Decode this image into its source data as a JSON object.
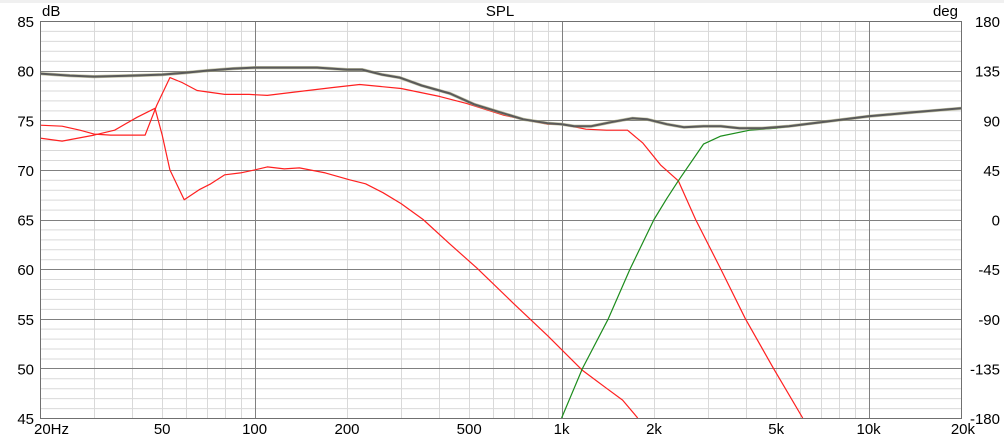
{
  "chart_data": {
    "type": "line",
    "title": "SPL",
    "ylabel": "dB",
    "y2label": "deg",
    "xscale": "log",
    "xlim": [
      20,
      20000
    ],
    "ylim": [
      45,
      85
    ],
    "y2lim": [
      -180,
      180
    ],
    "grid": true,
    "x_ticks": [
      {
        "value": 20,
        "label": "20Hz"
      },
      {
        "value": 50,
        "label": "50"
      },
      {
        "value": 100,
        "label": "100"
      },
      {
        "value": 200,
        "label": "200"
      },
      {
        "value": 500,
        "label": "500"
      },
      {
        "value": 1000,
        "label": "1k"
      },
      {
        "value": 2000,
        "label": "2k"
      },
      {
        "value": 5000,
        "label": "5k"
      },
      {
        "value": 10000,
        "label": "10k"
      },
      {
        "value": 20000,
        "label": "20k"
      }
    ],
    "y_ticks": [
      "85",
      "80",
      "75",
      "70",
      "65",
      "60",
      "55",
      "50",
      "45"
    ],
    "y2_ticks": [
      "180",
      "135",
      "90",
      "45",
      "0",
      "-45",
      "-90",
      "-135",
      "-180"
    ],
    "colors": {
      "sum": "#5a5a5a",
      "woofer": "#ff2020",
      "tweeter": "#1c8c1c",
      "grid_major": "#808080",
      "grid_minor": "#d9d9d9"
    },
    "series": [
      {
        "color": "#5a5a5a",
        "points": [
          [
            20,
            79.7
          ],
          [
            25,
            79.5
          ],
          [
            30,
            79.4
          ],
          [
            40,
            79.5
          ],
          [
            50,
            79.6
          ],
          [
            60,
            79.8
          ],
          [
            70,
            80.0
          ],
          [
            85,
            80.2
          ],
          [
            100,
            80.3
          ],
          [
            130,
            80.3
          ],
          [
            160,
            80.3
          ],
          [
            200,
            80.1
          ],
          [
            224,
            80.1
          ],
          [
            260,
            79.6
          ],
          [
            297,
            79.3
          ],
          [
            350,
            78.5
          ],
          [
            433,
            77.7
          ],
          [
            520,
            76.6
          ],
          [
            630,
            75.8
          ],
          [
            750,
            75.1
          ],
          [
            900,
            74.7
          ],
          [
            1000,
            74.6
          ],
          [
            1100,
            74.4
          ],
          [
            1250,
            74.4
          ],
          [
            1450,
            74.8
          ],
          [
            1700,
            75.2
          ],
          [
            1900,
            75.1
          ],
          [
            2200,
            74.6
          ],
          [
            2500,
            74.3
          ],
          [
            2900,
            74.4
          ],
          [
            3300,
            74.4
          ],
          [
            3800,
            74.2
          ],
          [
            4500,
            74.2
          ],
          [
            5500,
            74.4
          ],
          [
            7000,
            74.8
          ],
          [
            10000,
            75.4
          ],
          [
            14000,
            75.8
          ],
          [
            20000,
            76.2
          ]
        ]
      },
      {
        "color": "#ff2020",
        "points": [
          [
            20,
            73.2
          ],
          [
            23.6,
            72.9
          ],
          [
            30,
            73.5
          ],
          [
            35,
            74.0
          ],
          [
            41.4,
            75.3
          ],
          [
            47.4,
            76.2
          ],
          [
            50,
            73.5
          ],
          [
            53,
            70.0
          ],
          [
            59,
            67.0
          ],
          [
            66,
            68.0
          ],
          [
            72,
            68.6
          ],
          [
            80,
            69.5
          ],
          [
            90,
            69.7
          ],
          [
            100,
            70.0
          ],
          [
            110,
            70.3
          ],
          [
            125,
            70.1
          ],
          [
            140,
            70.2
          ],
          [
            170,
            69.7
          ],
          [
            204,
            69.0
          ],
          [
            230,
            68.6
          ],
          [
            262,
            67.7
          ],
          [
            300,
            66.6
          ],
          [
            354,
            65.0
          ],
          [
            430,
            62.6
          ],
          [
            530,
            60.1
          ],
          [
            700,
            56.5
          ],
          [
            900,
            53.3
          ],
          [
            1170,
            49.8
          ],
          [
            1400,
            48.0
          ],
          [
            1580,
            46.8
          ],
          [
            1770,
            45.0
          ]
        ]
      },
      {
        "color": "#ff2020",
        "points": [
          [
            20,
            74.5
          ],
          [
            23.6,
            74.4
          ],
          [
            27,
            74.0
          ],
          [
            30,
            73.6
          ],
          [
            34,
            73.5
          ],
          [
            44,
            73.5
          ],
          [
            48,
            76.5
          ],
          [
            53,
            79.3
          ],
          [
            58,
            78.8
          ],
          [
            65,
            78.0
          ],
          [
            80,
            77.6
          ],
          [
            96,
            77.6
          ],
          [
            110,
            77.5
          ],
          [
            140,
            77.9
          ],
          [
            180,
            78.3
          ],
          [
            220,
            78.6
          ],
          [
            300,
            78.2
          ],
          [
            400,
            77.4
          ],
          [
            490,
            76.7
          ],
          [
            650,
            75.5
          ],
          [
            900,
            74.6
          ],
          [
            1000,
            74.6
          ],
          [
            1200,
            74.1
          ],
          [
            1400,
            74.0
          ],
          [
            1640,
            74.0
          ],
          [
            1840,
            72.7
          ],
          [
            2100,
            70.5
          ],
          [
            2400,
            68.9
          ],
          [
            2733,
            65.0
          ],
          [
            3300,
            60.0
          ],
          [
            3970,
            55.0
          ],
          [
            4900,
            50.0
          ],
          [
            6100,
            45.0
          ]
        ]
      },
      {
        "color": "#1c8c1c",
        "points": [
          [
            1000,
            45.0
          ],
          [
            1170,
            50.0
          ],
          [
            1420,
            55.0
          ],
          [
            1670,
            60.0
          ],
          [
            2000,
            65.0
          ],
          [
            2200,
            67.1
          ],
          [
            2400,
            68.9
          ],
          [
            2900,
            72.6
          ],
          [
            3300,
            73.4
          ],
          [
            4100,
            74.0
          ],
          [
            5000,
            74.2
          ],
          [
            7000,
            74.8
          ],
          [
            10000,
            75.4
          ],
          [
            14000,
            75.8
          ],
          [
            20000,
            76.2
          ]
        ]
      }
    ]
  }
}
